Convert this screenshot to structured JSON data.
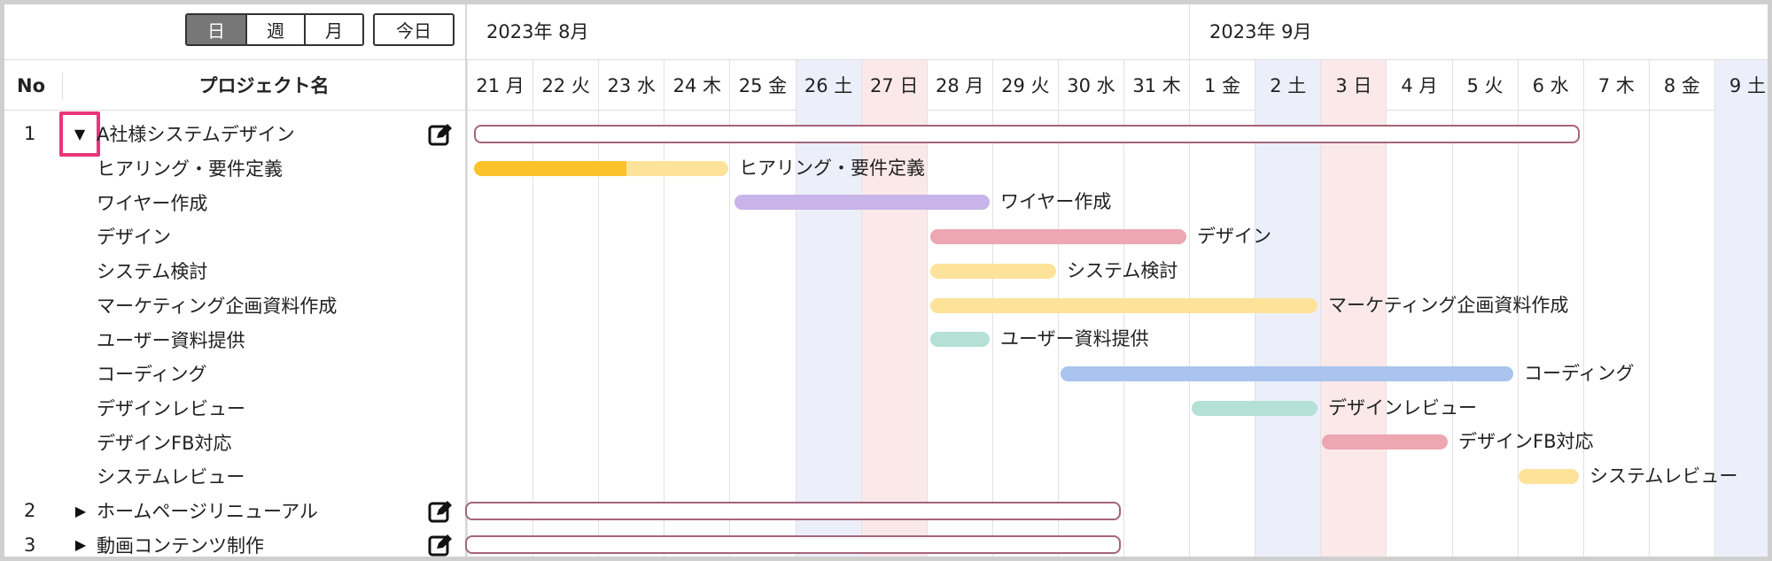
{
  "toolbar": {
    "view_day": "日",
    "view_week": "週",
    "view_month": "月",
    "today": "今日"
  },
  "table_header": {
    "no": "No",
    "project_name": "プロジェクト名"
  },
  "months": [
    "2023年 8月",
    "2023年 9月"
  ],
  "days": [
    "21 月",
    "22 火",
    "23 水",
    "24 木",
    "25 金",
    "26 土",
    "27 日",
    "28 月",
    "29 火",
    "30 水",
    "31 木",
    "1 金",
    "2 土",
    "3 日",
    "4 月",
    "5 火",
    "6 水",
    "7 木",
    "8 金",
    "9 土"
  ],
  "rows": [
    {
      "no": "1",
      "toggle": "▼",
      "label": "A社様システムデザイン"
    },
    {
      "no": "",
      "toggle": "",
      "label": "ヒアリング・要件定義"
    },
    {
      "no": "",
      "toggle": "",
      "label": "ワイヤー作成"
    },
    {
      "no": "",
      "toggle": "",
      "label": "デザイン"
    },
    {
      "no": "",
      "toggle": "",
      "label": "システム検討"
    },
    {
      "no": "",
      "toggle": "",
      "label": "マーケティング企画資料作成"
    },
    {
      "no": "",
      "toggle": "",
      "label": "ユーザー資料提供"
    },
    {
      "no": "",
      "toggle": "",
      "label": "コーディング"
    },
    {
      "no": "",
      "toggle": "",
      "label": "デザインレビュー"
    },
    {
      "no": "",
      "toggle": "",
      "label": "デザインFB対応"
    },
    {
      "no": "",
      "toggle": "",
      "label": "システムレビュー"
    },
    {
      "no": "2",
      "toggle": "▶",
      "label": "ホームページリニューアル"
    },
    {
      "no": "3",
      "toggle": "▶",
      "label": "動画コンテンツ制作"
    }
  ],
  "tasks": [
    {
      "label": "ヒアリング・要件定義",
      "color": "#fde39a",
      "progress_color": "#fcc22a",
      "progress": 0.6
    },
    {
      "label": "ワイヤー作成",
      "color": "#c8b4e8"
    },
    {
      "label": "デザイン",
      "color": "#eca7b2"
    },
    {
      "label": "システム検討",
      "color": "#fde39a"
    },
    {
      "label": "マーケティング企画資料作成",
      "color": "#fde39a"
    },
    {
      "label": "ユーザー資料提供",
      "color": "#b5e0d6"
    },
    {
      "label": "コーディング",
      "color": "#a9c4ee"
    },
    {
      "label": "デザインレビュー",
      "color": "#b5e0d6"
    },
    {
      "label": "デザインFB対応",
      "color": "#eca7b2"
    },
    {
      "label": "システムレビュー",
      "color": "#fde39a"
    }
  ],
  "colors": {
    "saturday": "#eceffa",
    "sunday": "#fbe9ea",
    "parent_border": "#a5647a",
    "highlight": "#e8367a"
  }
}
